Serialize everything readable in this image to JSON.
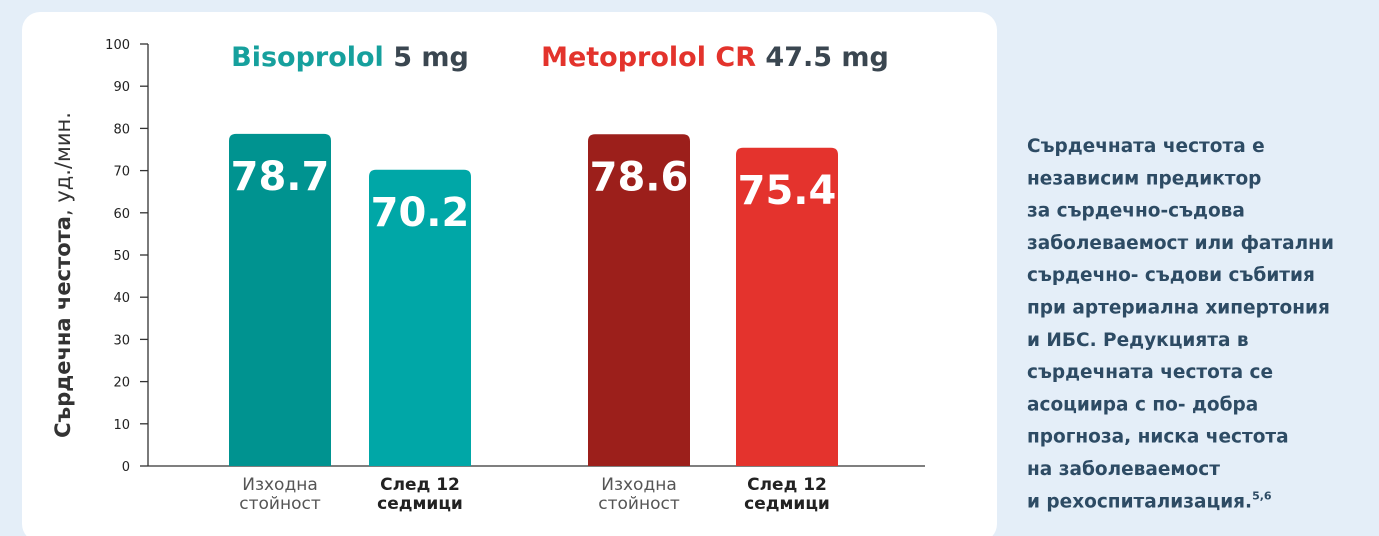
{
  "chart_data": {
    "type": "bar",
    "y_label": {
      "bold": "Сърдечна честота",
      "rest": ", уд./мин."
    },
    "ylim": [
      0,
      100
    ],
    "yticks": [
      0,
      10,
      20,
      30,
      40,
      50,
      60,
      70,
      80,
      90,
      100
    ],
    "series": [
      {
        "name": "Bisoprolol",
        "dose": "5 mg",
        "color": "#16a09d",
        "bar_colors": [
          "#009390",
          "#00a7a7"
        ],
        "categories": [
          "Изходна стойност",
          "След 12 седмици"
        ],
        "values": [
          78.7,
          70.2
        ]
      },
      {
        "name": "Metoprolol CR",
        "dose": "47.5 mg",
        "color": "#e3332c",
        "bar_colors": [
          "#9c1f1b",
          "#e4332d"
        ],
        "categories": [
          "Изходна стойност",
          "След 12 седмици"
        ],
        "values": [
          78.6,
          75.4
        ]
      }
    ]
  },
  "side_text": {
    "lines": [
      "Сърдечната честота е",
      "независим предиктор",
      "за сърдечно-съдова",
      "заболеваемост или фатални",
      "сърдечно- съдови събития",
      "при артериална хипертония",
      "и ИБС. Редукцията в",
      "сърдечната честота се",
      "асоциира с по- добра",
      "прогноза, ниска честота",
      "на заболеваемост",
      "и рехоспитализация."
    ],
    "refs": "5,6"
  }
}
